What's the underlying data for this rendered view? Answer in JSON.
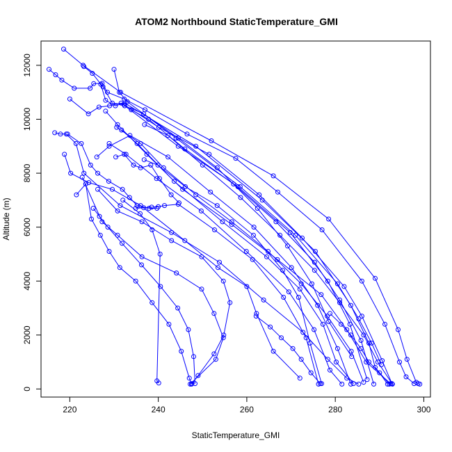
{
  "chart_data": {
    "type": "line",
    "title": "ATOM2 Northbound StaticTemperature_GMI",
    "xlabel": "StaticTemperature_GMI",
    "ylabel": "Altitude (m)",
    "xlim": [
      213.5,
      301.5
    ],
    "ylim": [
      -300,
      12900
    ],
    "x_ticks": [
      220,
      240,
      260,
      280,
      300
    ],
    "y_ticks": [
      0,
      2000,
      4000,
      6000,
      8000,
      10000,
      12000
    ],
    "series_color": "#0000ff",
    "marker": "open-circle",
    "grid": false,
    "series": [
      {
        "x": [
          218.6,
          223.0,
          231.5,
          252.0,
          266.0,
          278.5,
          289.0,
          294.2,
          296.2,
          298.3,
          298.7,
          299.1
        ],
        "y": [
          12600,
          12000,
          11000,
          9200,
          7900,
          6300,
          4100,
          2200,
          1100,
          250,
          200,
          180
        ]
      },
      {
        "x": [
          215.3,
          216.8,
          218.2,
          221.0,
          224.6,
          225.4,
          227.3,
          228.5,
          232.3,
          237.0,
          246.5,
          257.5,
          267.0,
          277.0,
          286.0,
          291.2,
          294.5,
          296.0,
          297.8
        ],
        "y": [
          11850,
          11650,
          11450,
          11150,
          11150,
          11320,
          11330,
          11000,
          10750,
          10350,
          9450,
          8550,
          7300,
          5900,
          4000,
          2400,
          1000,
          450,
          200
        ]
      },
      {
        "x": [
          223.2,
          225.1,
          227.5,
          229.6,
          232.2,
          240.1,
          251.5,
          262.8,
          272.5,
          282.0,
          286.0,
          290.6,
          292.8
        ],
        "y": [
          11950,
          11700,
          11200,
          10600,
          10550,
          9700,
          8700,
          7200,
          5600,
          3800,
          2700,
          1050,
          200
        ]
      },
      {
        "x": [
          230.0,
          231.2,
          233.0,
          244.0,
          258.5,
          271.0,
          280.5,
          285.3,
          288.2,
          290.4
        ],
        "y": [
          11850,
          11000,
          10650,
          9300,
          7500,
          5700,
          3900,
          2600,
          1700,
          900
        ]
      },
      {
        "x": [
          227.0,
          228.1,
          230.3,
          232.4,
          248.5,
          263.5,
          275.5,
          283.5,
          287.6,
          289.0,
          292.2
        ],
        "y": [
          11300,
          10700,
          10500,
          10600,
          9000,
          7000,
          5100,
          3100,
          1700,
          800,
          180
        ]
      },
      {
        "x": [
          220.0,
          224.2,
          226.6,
          229.0,
          231.6,
          244.5,
          258.0,
          269.8,
          278.3,
          283.3,
          287.2
        ],
        "y": [
          10750,
          10200,
          10450,
          10500,
          10600,
          9000,
          7500,
          5800,
          4000,
          2400,
          350
        ]
      },
      {
        "x": [
          216.6,
          217.9,
          219.2,
          221.4,
          223.2,
          231.4,
          243.0,
          253.8,
          263.8,
          272.7,
          278.3,
          282.6,
          285.3
        ],
        "y": [
          9500,
          9450,
          9450,
          9100,
          8000,
          6800,
          5800,
          4700,
          3300,
          2100,
          1100,
          400,
          180
        ]
      },
      {
        "x": [
          218.8,
          220.2,
          224.3,
          229.6,
          236.0,
          246.0,
          253.5,
          260.0,
          262.2,
          266.0,
          272.0
        ],
        "y": [
          8700,
          8000,
          7650,
          7400,
          6800,
          5500,
          4500,
          3800,
          2800,
          1400,
          400
        ]
      },
      {
        "x": [
          221.5,
          223.6,
          224.9,
          226.9,
          228.9,
          231.3,
          234.9,
          238.6,
          242.4,
          245.2,
          247.0,
          247.5
        ],
        "y": [
          7200,
          7600,
          6300,
          5700,
          5100,
          4500,
          4000,
          3200,
          2400,
          1400,
          400,
          180
        ]
      },
      {
        "x": [
          225.3,
          226.7,
          228.6,
          231.8,
          236.2,
          240.5,
          244.4,
          246.8,
          248.0,
          248.3
        ],
        "y": [
          6700,
          6400,
          6000,
          5400,
          4600,
          3800,
          3000,
          2200,
          1200,
          200
        ]
      },
      {
        "x": [
          222.8,
          227.3,
          230.8,
          236.3,
          244.1,
          249.8,
          252.6,
          254.7,
          253.0,
          247.2
        ],
        "y": [
          7850,
          6200,
          5700,
          4900,
          4300,
          3700,
          2800,
          1900,
          1100,
          180
        ]
      },
      {
        "x": [
          232.0,
          235.9,
          238.6,
          240.4,
          239.7,
          240.1
        ],
        "y": [
          7000,
          6500,
          5900,
          5000,
          300,
          220
        ]
      },
      {
        "x": [
          226.3,
          230.8,
          236.3,
          243.0,
          249.8,
          254.7,
          256.2,
          254.8,
          252.6,
          249.0,
          247.6
        ],
        "y": [
          7400,
          6600,
          6200,
          5500,
          4900,
          4000,
          3200,
          2000,
          1300,
          500,
          200
        ]
      },
      {
        "x": [
          234.9,
          236.7,
          238.5,
          240.0,
          241.4,
          244.5,
          252.7,
          261.3,
          268.3,
          273.4,
          276.2
        ],
        "y": [
          6700,
          6720,
          6740,
          6760,
          6800,
          6850,
          5900,
          4800,
          3400,
          1900,
          180
        ]
      },
      {
        "x": [
          226.1,
          228.9,
          233.6,
          242.2,
          251.8,
          261.6,
          270.1,
          276.0,
          280.5,
          283.5
        ],
        "y": [
          8600,
          9000,
          9400,
          8600,
          7300,
          6000,
          4500,
          3100,
          1500,
          180
        ]
      },
      {
        "x": [
          228.1,
          230.8,
          237.4,
          245.5,
          256.6,
          266.9,
          276.8,
          282.6,
          287.0,
          292.5
        ],
        "y": [
          10300,
          9800,
          8700,
          7400,
          6100,
          4800,
          3500,
          2200,
          1000,
          200
        ]
      },
      {
        "x": [
          231.7,
          235.2,
          243.6,
          254.5,
          264.5,
          272.0,
          277.2,
          280.2,
          284.1
        ],
        "y": [
          9600,
          9100,
          7700,
          6200,
          4900,
          3700,
          2400,
          1000,
          200
        ]
      },
      {
        "x": [
          228.9,
          232.7,
          239.6,
          249.7,
          259.9,
          269.5,
          275.2,
          278.8,
          281.5
        ],
        "y": [
          9100,
          8700,
          7800,
          6600,
          5100,
          3600,
          2200,
          700,
          180
        ]
      },
      {
        "x": [
          232.4,
          236.7,
          244.5,
          253.3,
          262.4,
          269.2,
          274.7,
          278.5,
          283.7
        ],
        "y": [
          10500,
          10200,
          9300,
          8200,
          6700,
          5300,
          3900,
          2500,
          1200
        ]
      },
      {
        "x": [
          233.9,
          237.8,
          246.0,
          257.0,
          266.6,
          275.3,
          281.0,
          285.8,
          288.7
        ],
        "y": [
          10350,
          10000,
          8900,
          7600,
          6200,
          4700,
          3300,
          1800,
          180
        ]
      },
      {
        "x": [
          236.9,
          242.2,
          250.0,
          258.6,
          267.5,
          275.3,
          281.0,
          286.4,
          289.6,
          292.9
        ],
        "y": [
          9800,
          9400,
          8300,
          7100,
          5700,
          4400,
          3200,
          2000,
          1000,
          180
        ]
      },
      {
        "x": [
          230.6,
          236.0,
          241.2,
          248.5,
          256.6,
          264.8,
          272.3,
          278.2,
          283.6,
          286.4
        ],
        "y": [
          9700,
          9100,
          8200,
          7200,
          6200,
          5100,
          3900,
          2700,
          1400,
          250
        ]
      },
      {
        "x": [
          219.5,
          222.6,
          224.7,
          226.3,
          228.8,
          231.9,
          233.5,
          235.2,
          237.9,
          239.7
        ],
        "y": [
          9450,
          9100,
          8300,
          8000,
          7700,
          7400,
          7100,
          6800,
          6700,
          6700
        ]
      },
      {
        "x": [
          230.4,
          232.3,
          234.4,
          236.0,
          238.3,
          240.3,
          242.9,
          244.7
        ],
        "y": [
          8600,
          8700,
          8300,
          8200,
          8300,
          7800,
          7200,
          6900
        ]
      },
      {
        "x": [
          236.8,
          239.9,
          246.1,
          253.3,
          261.5,
          268.1,
          271.7,
          274.3,
          276.9
        ],
        "y": [
          8500,
          8300,
          7500,
          6800,
          5700,
          4400,
          3400,
          1700,
          200
        ]
      },
      {
        "x": [
          262.1,
          265.3,
          267.8,
          270.4,
          272.3,
          274.5,
          276.6
        ],
        "y": [
          2700,
          2300,
          1900,
          1500,
          1100,
          600,
          200
        ]
      },
      {
        "x": [
          278.8,
          281.3,
          283.5,
          285.8,
          287.6,
          290.0,
          291.8
        ],
        "y": [
          2800,
          2400,
          2000,
          1500,
          1000,
          600,
          180
        ]
      }
    ]
  }
}
